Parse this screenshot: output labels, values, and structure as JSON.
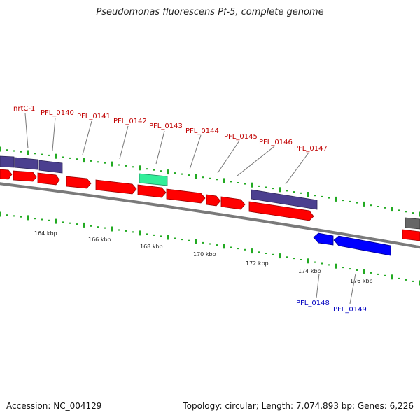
{
  "title": "Pseudomonas fluorescens Pf-5, complete genome",
  "footer": {
    "accession": "Accession: NC_004129",
    "summary": "Topology: circular; Length: 7,074,893 bp; Genes: 6,226"
  },
  "colors": {
    "forward_gene": "#ff0000",
    "reverse_gene": "#0000ff",
    "feature_purple": "#4b3f8f",
    "feature_teal": "#33ee99",
    "feature_gray": "#666666",
    "backbone": "#808080",
    "tick": "#22aa22",
    "label_forward": "#c00000",
    "label_reverse": "#0000c0"
  },
  "scale_labels": [
    "164 kbp",
    "166 kbp",
    "168 kbp",
    "170 kbp",
    "172 kbp",
    "174 kbp",
    "176 kbp"
  ],
  "gene_labels_forward": [
    "nrtC-1",
    "PFL_0140",
    "PFL_0141",
    "PFL_0142",
    "PFL_0143",
    "PFL_0144",
    "PFL_0145",
    "PFL_0146",
    "PFL_0147"
  ],
  "gene_labels_reverse": [
    "PFL_0148",
    "PFL_0149"
  ]
}
